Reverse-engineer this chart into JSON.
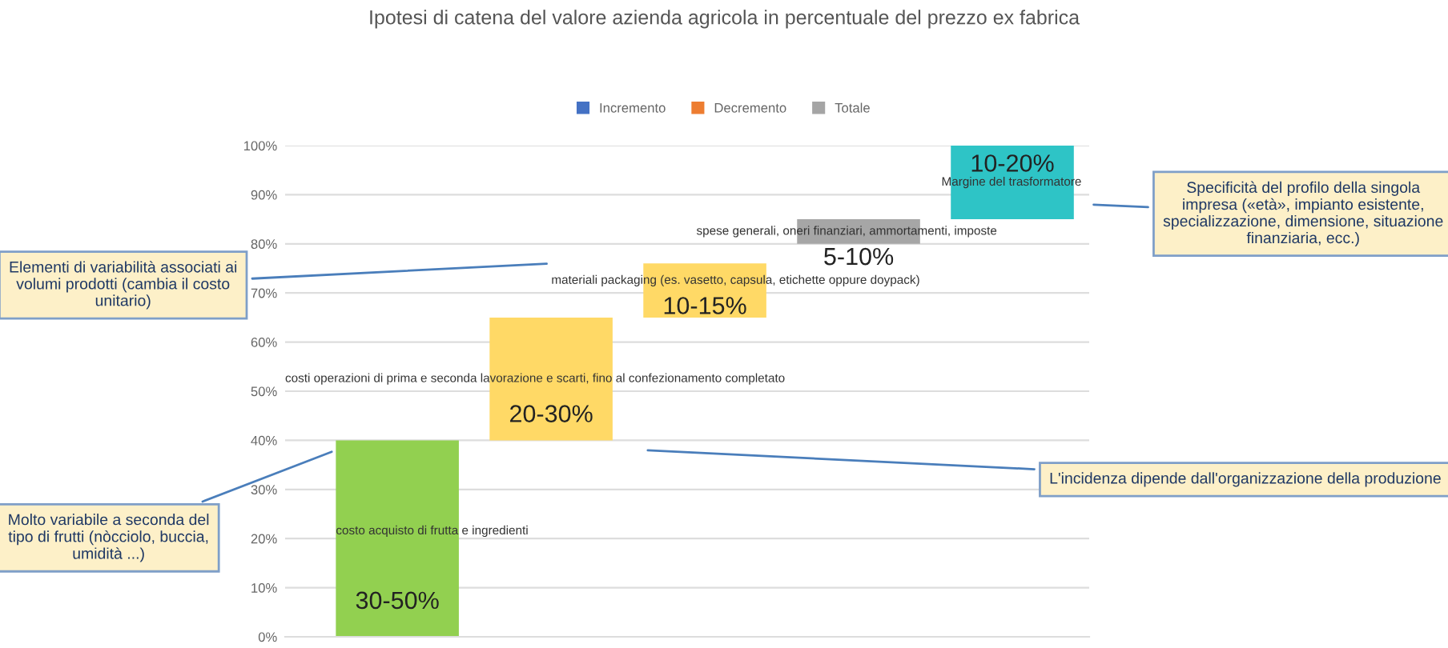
{
  "chart_data": {
    "type": "bar",
    "title": "Ipotesi di catena del valore azienda agricola in percentuale del prezzo ex fabrica",
    "categories": [
      "costo acquisto di frutta e ingredienti",
      "costi operazioni di prima e seconda lavorazione e scarti, fino al confezionamento completato",
      "materiali packaging (es. vasetto, capsula, etichette oppure doypack)",
      "spese generali, oneri finanziari, ammortamenti, imposte",
      "Margine del trasformatore"
    ],
    "base": [
      0,
      40,
      65,
      80,
      85
    ],
    "values": [
      40,
      25,
      11,
      5,
      15
    ],
    "colors": [
      "#92d050",
      "#ffd966",
      "#ffd966",
      "#a6a6a6",
      "#2ec4c6"
    ],
    "series": [
      {
        "name": "Incremento",
        "color": "#4472c4",
        "values": [
          null,
          null,
          null,
          null,
          null
        ]
      },
      {
        "name": "Decremento",
        "color": "#ed7d31",
        "values": [
          null,
          null,
          null,
          null,
          null
        ]
      },
      {
        "name": "Totale",
        "color": "#a5a5a5",
        "values": [
          null,
          null,
          null,
          null,
          null
        ]
      }
    ],
    "ylim": [
      0,
      100
    ],
    "yticks": [
      {
        "value": 0,
        "label": "0%"
      },
      {
        "value": 10,
        "label": "10%"
      },
      {
        "value": 20,
        "label": "20%"
      },
      {
        "value": 30,
        "label": "30%"
      },
      {
        "value": 40,
        "label": "40%"
      },
      {
        "value": 50,
        "label": "50%"
      },
      {
        "value": 60,
        "label": "60%"
      },
      {
        "value": 70,
        "label": "70%"
      },
      {
        "value": 80,
        "label": "80%"
      },
      {
        "value": 90,
        "label": "90%"
      },
      {
        "value": 100,
        "label": "100%"
      }
    ],
    "grid": "y",
    "legend": "top",
    "annotations": [
      "30-50%",
      "20-30%",
      "10-15%",
      "5-10%",
      "10-20%",
      "Elementi di variabilità associati ai volumi prodotti (cambia il costo unitario)",
      "Molto variabile a seconda del tipo di frutti (nòcciolo, buccia, umidità ...)",
      "Specificità del profilo della singola impresa («età», impianto esistente, specializzazione, dimensione, situazione finanziaria, ecc.)",
      "L'incidenza dipende dall'organizzazione della produzione"
    ]
  }
}
